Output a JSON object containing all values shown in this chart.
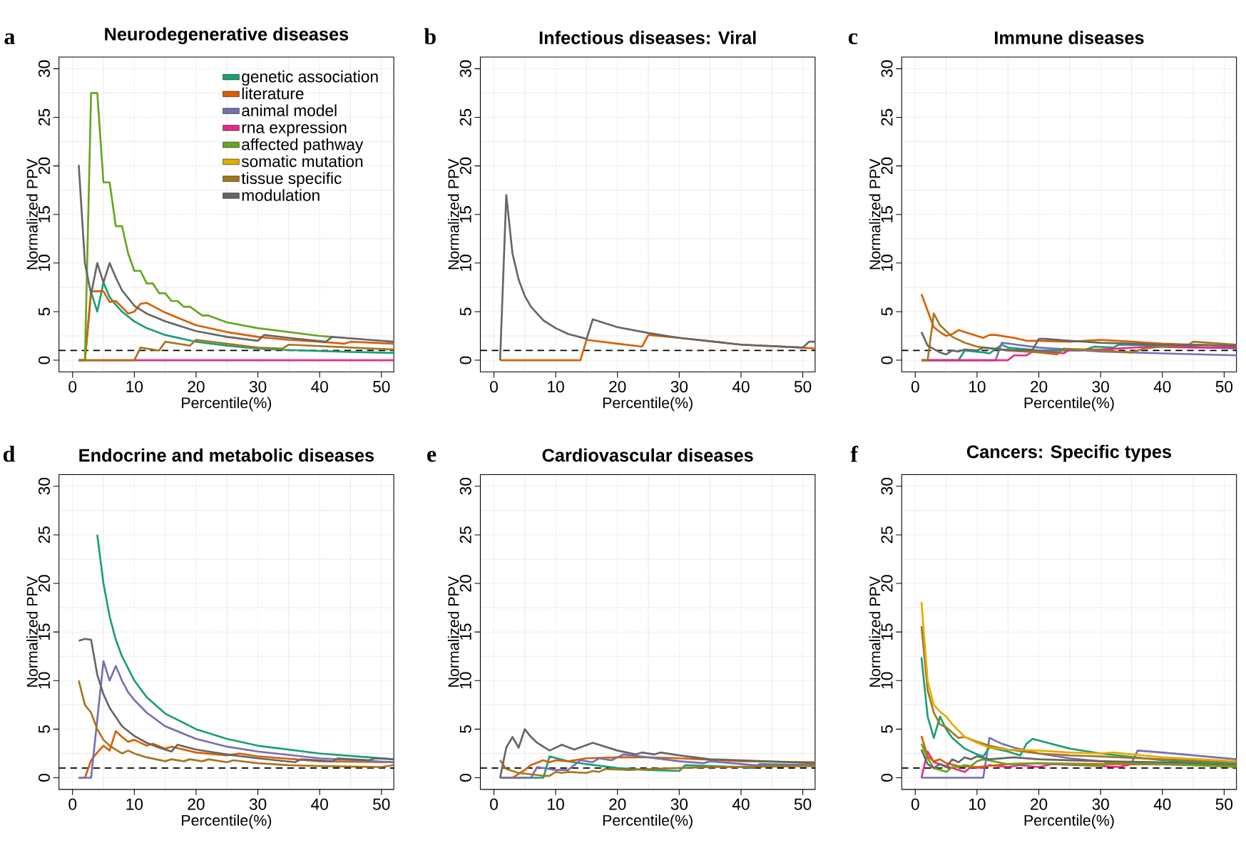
{
  "chart_data": [
    {
      "type": "line",
      "title": "Neurodegenerative diseases",
      "xlabel": "Percentile(%)",
      "ylabel": "Normalized PPV",
      "annotations": [
        "a"
      ],
      "xlim": [
        -2.2,
        52
      ],
      "ylim": [
        -1.2,
        31.2
      ],
      "xticks": [
        0,
        10,
        20,
        30,
        40,
        50
      ],
      "yticks": [
        0,
        5,
        10,
        15,
        20,
        25,
        30
      ],
      "grid": true,
      "legend": "top right",
      "ref_lines": [
        {
          "axis": "y",
          "value": 1,
          "color": "#000000",
          "line_style": "dashed"
        }
      ],
      "series": [
        {
          "name": "genetic association",
          "color": "#1b9e77",
          "x": [
            1,
            2,
            3,
            4,
            5,
            6,
            7,
            8,
            10,
            12,
            15,
            20,
            25,
            30,
            35,
            40,
            45,
            52
          ],
          "values": [
            0,
            0,
            7,
            5,
            8,
            6.5,
            5.7,
            5,
            4,
            3.3,
            2.6,
            1.9,
            1.5,
            1.2,
            1.05,
            0.95,
            0.85,
            0.75
          ]
        },
        {
          "name": "literature",
          "color": "#d95f02",
          "x": [
            1,
            2,
            3,
            5,
            6,
            7,
            9,
            10,
            11,
            12,
            15,
            20,
            25,
            30,
            35,
            40,
            44,
            45,
            52
          ],
          "values": [
            0,
            0,
            7.1,
            7.1,
            6,
            6.1,
            4.8,
            5,
            5.8,
            5.9,
            4.9,
            3.6,
            2.9,
            2.4,
            2.1,
            1.9,
            1.7,
            1.9,
            1.7
          ]
        },
        {
          "name": "animal model",
          "color": "#7570b3"
        },
        {
          "name": "rna expression",
          "color": "#e7298a",
          "x": [
            1,
            52
          ],
          "values": [
            0,
            0
          ]
        },
        {
          "name": "affected pathway",
          "color": "#66a61e",
          "x": [
            1,
            2,
            3,
            4,
            5,
            6,
            7,
            8,
            9,
            10,
            11,
            12,
            13,
            14,
            15,
            16,
            17,
            18,
            19,
            21,
            22,
            25,
            30,
            35,
            40,
            42
          ],
          "values": [
            0,
            0,
            27.5,
            27.5,
            18.3,
            18.3,
            13.8,
            13.8,
            11,
            9.2,
            9.2,
            7.9,
            7.9,
            6.9,
            6.9,
            6.1,
            6.1,
            5.5,
            5.5,
            4.6,
            4.6,
            3.9,
            3.3,
            2.9,
            2.5,
            2.4
          ]
        },
        {
          "name": "somatic mutation",
          "color": "#e6ab02"
        },
        {
          "name": "tissue specific",
          "color": "#a6761d",
          "x": [
            1,
            10,
            11,
            14,
            15,
            19,
            20,
            30,
            34,
            35,
            52
          ],
          "values": [
            0,
            0,
            1.3,
            1.0,
            1.9,
            1.5,
            2.1,
            1.3,
            1.2,
            1.6,
            1.1
          ]
        },
        {
          "name": "modulation",
          "color": "#666666",
          "x": [
            1,
            2,
            3,
            4,
            5,
            6,
            7,
            8,
            10,
            12,
            15,
            20,
            25,
            30,
            31,
            35,
            41,
            42,
            52
          ],
          "values": [
            20.1,
            10,
            6.8,
            10,
            8,
            10,
            8.5,
            7.2,
            5.6,
            4.8,
            4.0,
            3.0,
            2.4,
            2.0,
            2.6,
            2.3,
            1.9,
            2.4,
            1.9
          ]
        }
      ]
    },
    {
      "type": "line",
      "title": "Infectious diseases: Viral",
      "xlabel": "Percentile(%)",
      "ylabel": "Normalized PPV",
      "annotations": [
        "b"
      ],
      "xlim": [
        -2.2,
        52
      ],
      "ylim": [
        -1.2,
        31.2
      ],
      "xticks": [
        0,
        10,
        20,
        30,
        40,
        50
      ],
      "yticks": [
        0,
        5,
        10,
        15,
        20,
        25,
        30
      ],
      "grid": true,
      "ref_lines": [
        {
          "axis": "y",
          "value": 1,
          "color": "#000000",
          "line_style": "dashed"
        }
      ],
      "series": [
        {
          "color": "#d95f02",
          "x": [
            1,
            14,
            15,
            20,
            24,
            25,
            30,
            40,
            50,
            52
          ],
          "values": [
            0,
            0,
            2.1,
            1.7,
            1.4,
            2.6,
            2.3,
            1.6,
            1.3,
            1.2
          ]
        },
        {
          "color": "#666666",
          "x": [
            1,
            2,
            3,
            4,
            5,
            6,
            8,
            10,
            12,
            15,
            16,
            20,
            25,
            30,
            40,
            50,
            51,
            52
          ],
          "values": [
            0,
            17,
            11,
            8.3,
            6.6,
            5.5,
            4.1,
            3.3,
            2.7,
            2.2,
            4.2,
            3.4,
            2.8,
            2.3,
            1.6,
            1.3,
            1.9,
            1.9
          ]
        }
      ]
    },
    {
      "type": "line",
      "title": "Immune diseases",
      "xlabel": "Percentile(%)",
      "ylabel": "Normalized PPV",
      "annotations": [
        "c"
      ],
      "xlim": [
        -2.2,
        52
      ],
      "ylim": [
        -1.2,
        31.2
      ],
      "xticks": [
        0,
        10,
        20,
        30,
        40,
        50
      ],
      "yticks": [
        0,
        5,
        10,
        15,
        20,
        25,
        30
      ],
      "grid": true,
      "ref_lines": [
        {
          "axis": "y",
          "value": 1,
          "color": "#000000",
          "line_style": "dashed"
        }
      ],
      "series": [
        {
          "color": "#1b9e77",
          "x": [
            1,
            7,
            8,
            11,
            12,
            14,
            15,
            20,
            27,
            29,
            32,
            33,
            40,
            52
          ],
          "values": [
            0,
            0,
            1.0,
            0.8,
            0.7,
            1.6,
            1.3,
            1.0,
            1.0,
            1.4,
            1.3,
            1.6,
            1.5,
            1.2
          ]
        },
        {
          "color": "#d95f02",
          "x": [
            1,
            3,
            4,
            5,
            6,
            7,
            9,
            11,
            12,
            13,
            16,
            18,
            20,
            25,
            30,
            35,
            40,
            45,
            52
          ],
          "values": [
            6.8,
            3.4,
            2.9,
            2.5,
            2.7,
            3.1,
            2.7,
            2.3,
            2.6,
            2.6,
            2.3,
            2,
            2,
            1.9,
            2.1,
            1.9,
            1.7,
            1.6,
            1.5
          ]
        },
        {
          "color": "#7570b3",
          "x": [
            1,
            13,
            14,
            20,
            30,
            40,
            52
          ],
          "values": [
            0,
            0,
            1.8,
            1.3,
            0.9,
            0.7,
            0.5
          ]
        },
        {
          "color": "#e7298a",
          "x": [
            1,
            15,
            16,
            18,
            19,
            23,
            24,
            25,
            30,
            38,
            45,
            52
          ],
          "values": [
            0,
            0,
            0.5,
            0.5,
            0.9,
            0.8,
            0.7,
            1.1,
            1.1,
            1.4,
            1.3,
            1.3
          ]
        },
        {
          "color": "#a6761d",
          "x": [
            1,
            2,
            3,
            4,
            6,
            8,
            10,
            15,
            20,
            23,
            24,
            30,
            35,
            37,
            40,
            44,
            45,
            52
          ],
          "values": [
            0,
            0,
            4.8,
            3.6,
            2.4,
            1.8,
            1.4,
            1.0,
            0.8,
            0.6,
            1.2,
            1.0,
            0.8,
            1.2,
            1.4,
            1.5,
            1.9,
            1.6
          ]
        },
        {
          "color": "#666666",
          "x": [
            1,
            2,
            4,
            5,
            6,
            7,
            8,
            10,
            11,
            14,
            17,
            19,
            20,
            21,
            25,
            30,
            35,
            40,
            52
          ],
          "values": [
            2.9,
            1.5,
            0.8,
            0.6,
            1.0,
            0.9,
            1.1,
            1.0,
            1.3,
            1.1,
            1.0,
            1.1,
            2.2,
            2.2,
            2.0,
            1.8,
            1.7,
            1.6,
            1.5
          ]
        }
      ]
    },
    {
      "type": "line",
      "title": "Endocrine and metabolic diseases",
      "xlabel": "Percentile(%)",
      "ylabel": "Normalized PPV",
      "annotations": [
        "d"
      ],
      "xlim": [
        -2.2,
        52
      ],
      "ylim": [
        -1.2,
        31.2
      ],
      "xticks": [
        0,
        10,
        20,
        30,
        40,
        50
      ],
      "yticks": [
        0,
        5,
        10,
        15,
        20,
        25,
        30
      ],
      "grid": true,
      "ref_lines": [
        {
          "axis": "y",
          "value": 1,
          "color": "#000000",
          "line_style": "dashed"
        }
      ],
      "series": [
        {
          "color": "#1b9e77",
          "x": [
            4,
            5,
            6,
            7,
            8,
            10,
            12,
            15,
            20,
            25,
            30,
            40,
            52
          ],
          "values": [
            25,
            20,
            16.6,
            14.2,
            12.5,
            10,
            8.3,
            6.6,
            5,
            4,
            3.3,
            2.5,
            1.9
          ]
        },
        {
          "color": "#d95f02",
          "x": [
            1,
            2,
            3,
            4,
            5,
            6,
            7,
            8,
            9,
            10,
            12,
            13,
            15,
            16,
            20,
            25,
            27,
            30,
            36,
            40,
            52
          ],
          "values": [
            0,
            0,
            1.8,
            2.6,
            3.3,
            2.8,
            4.8,
            4.2,
            3.7,
            3.9,
            3.3,
            3.5,
            3.0,
            3.2,
            2.6,
            2.3,
            2.5,
            2.2,
            1.9,
            1.7,
            1.6
          ]
        },
        {
          "color": "#7570b3",
          "x": [
            1,
            3,
            5,
            6,
            7,
            8,
            9,
            10,
            12,
            15,
            20,
            25,
            30,
            40,
            52
          ],
          "values": [
            0,
            0,
            12,
            10,
            11.5,
            10,
            8.8,
            8,
            6.7,
            5.3,
            4,
            3.2,
            2.7,
            2,
            1.6
          ]
        },
        {
          "color": "#a6761d",
          "x": [
            1,
            2,
            3,
            4,
            5,
            6,
            7,
            8,
            9,
            10,
            12,
            15,
            16,
            18,
            19,
            21,
            22,
            25,
            26,
            30,
            35,
            40,
            50,
            52
          ],
          "values": [
            10,
            7.5,
            6.7,
            5,
            3.9,
            3.3,
            2.9,
            2.5,
            2.8,
            2.5,
            2.1,
            1.7,
            1.9,
            1.7,
            1.9,
            1.7,
            1.9,
            1.6,
            1.8,
            1.5,
            1.3,
            1.2,
            1.1,
            1.3
          ]
        },
        {
          "color": "#666666",
          "x": [
            1,
            2,
            3,
            4,
            5,
            6,
            8,
            10,
            12,
            14,
            16,
            17,
            20,
            25,
            30,
            36,
            37,
            42,
            43,
            48,
            49,
            52
          ],
          "values": [
            14.1,
            14.3,
            14.2,
            10.6,
            8.6,
            7.2,
            5.3,
            4.3,
            3.6,
            3.1,
            2.7,
            3.4,
            2.9,
            2.4,
            2.0,
            1.6,
            1.9,
            1.7,
            2.0,
            1.8,
            2.0,
            1.9
          ]
        }
      ]
    },
    {
      "type": "line",
      "title": "Cardiovascular diseases",
      "xlabel": "Percentile(%)",
      "ylabel": "Normalized PPV",
      "annotations": [
        "e"
      ],
      "xlim": [
        -2.2,
        52
      ],
      "ylim": [
        -1.2,
        31.2
      ],
      "xticks": [
        0,
        10,
        20,
        30,
        40,
        50
      ],
      "yticks": [
        0,
        5,
        10,
        15,
        20,
        25,
        30
      ],
      "grid": true,
      "ref_lines": [
        {
          "axis": "y",
          "value": 1,
          "color": "#000000",
          "line_style": "dashed"
        }
      ],
      "series": [
        {
          "color": "#1b9e77",
          "x": [
            1,
            8,
            9,
            12,
            15,
            20,
            25,
            30,
            31,
            40,
            42,
            43,
            52
          ],
          "values": [
            0,
            0,
            2.2,
            1.7,
            1.4,
            1.0,
            0.8,
            0.7,
            1.3,
            1.1,
            1.0,
            1.4,
            1.3
          ]
        },
        {
          "color": "#d95f02",
          "x": [
            1,
            3,
            5,
            6,
            8,
            9,
            10,
            12,
            15,
            20,
            25,
            30,
            40,
            52
          ],
          "values": [
            0,
            0,
            0.8,
            1.3,
            1.8,
            1.6,
            1.8,
            1.7,
            2.0,
            2.1,
            2.1,
            2.0,
            1.7,
            1.6
          ]
        },
        {
          "color": "#7570b3",
          "x": [
            1,
            6,
            7,
            10,
            12,
            14,
            16,
            17,
            19,
            21,
            25,
            30,
            34,
            35,
            42,
            52
          ],
          "values": [
            0,
            0,
            1.1,
            0.8,
            0.8,
            1.8,
            1.6,
            2.0,
            1.8,
            2.4,
            2.1,
            1.7,
            1.5,
            1.7,
            1.3,
            1.3
          ]
        },
        {
          "color": "#a6761d",
          "x": [
            1,
            2,
            4,
            8,
            9,
            10,
            11,
            12,
            15,
            16,
            17,
            18,
            22,
            25,
            30,
            35,
            52
          ],
          "values": [
            1.8,
            0.9,
            0.5,
            0.2,
            0.2,
            0.6,
            0.5,
            0.6,
            0.5,
            0.7,
            0.6,
            0.9,
            0.8,
            0.9,
            1.0,
            1.1,
            1.2
          ]
        },
        {
          "color": "#666666",
          "x": [
            1,
            2,
            3,
            4,
            5,
            6,
            7,
            9,
            11,
            13,
            16,
            20,
            23,
            24,
            26,
            27,
            30,
            35,
            40,
            52
          ],
          "values": [
            0,
            3.1,
            4.2,
            3.1,
            5,
            4.2,
            3.6,
            2.8,
            3.4,
            2.9,
            3.6,
            2.8,
            2.4,
            2.6,
            2.4,
            2.6,
            2.3,
            1.9,
            1.8,
            1.5
          ]
        }
      ]
    },
    {
      "type": "line",
      "title": "Cancers: Specific types",
      "xlabel": "Percentile(%)",
      "ylabel": "Normalized PPV",
      "annotations": [
        "f"
      ],
      "xlim": [
        -2.2,
        52
      ],
      "ylim": [
        -1.2,
        31.2
      ],
      "xticks": [
        0,
        10,
        20,
        30,
        40,
        50
      ],
      "yticks": [
        0,
        5,
        10,
        15,
        20,
        25,
        30
      ],
      "grid": true,
      "ref_lines": [
        {
          "axis": "y",
          "value": 1,
          "color": "#000000",
          "line_style": "dashed"
        }
      ],
      "series": [
        {
          "color": "#7570b3",
          "x": [
            1,
            11,
            12,
            14,
            16,
            20,
            25,
            30,
            35,
            36,
            40,
            52
          ],
          "values": [
            0,
            0,
            4.1,
            3.5,
            3.1,
            2.5,
            2.0,
            1.7,
            1.5,
            2.8,
            2.6,
            1.9
          ]
        },
        {
          "color": "#e7298a",
          "x": [
            1,
            2,
            3,
            5,
            8,
            9,
            11,
            12,
            15,
            17,
            20,
            22,
            30,
            33,
            35,
            52
          ],
          "values": [
            0,
            2.7,
            1.6,
            1.2,
            0.6,
            1.1,
            1.0,
            1.3,
            1.1,
            1.3,
            1.1,
            1.4,
            1.2,
            1.1,
            1.4,
            1.3
          ]
        },
        {
          "color": "#d95f02",
          "x": [
            1,
            2,
            3,
            4,
            5,
            7,
            10,
            15,
            20,
            30,
            40,
            52
          ],
          "values": [
            4.3,
            2.2,
            1.7,
            1.9,
            1.5,
            1.2,
            1.1,
            1.4,
            1.5,
            1.4,
            1.4,
            1.3
          ]
        },
        {
          "color": "#66a61e",
          "x": [
            1,
            2,
            3,
            5,
            6,
            7,
            8,
            9,
            10,
            11,
            15,
            20,
            25,
            30,
            31,
            40,
            52
          ],
          "values": [
            3.5,
            2.0,
            1.0,
            0.6,
            1.1,
            1.1,
            1.3,
            1.2,
            1.7,
            1.9,
            1.4,
            1.5,
            1.4,
            1.2,
            1.6,
            1.4,
            1.1
          ]
        },
        {
          "color": "#666666",
          "x": [
            1,
            2,
            3,
            4,
            5,
            6,
            7,
            8,
            9,
            10,
            12,
            16,
            20,
            30,
            40,
            52
          ],
          "values": [
            2.9,
            1.4,
            1.0,
            1.4,
            1.1,
            1.9,
            1.6,
            2.1,
            1.9,
            2.2,
            1.9,
            2.1,
            1.9,
            1.7,
            1.6,
            1.4
          ]
        },
        {
          "color": "#1b9e77",
          "x": [
            1,
            2,
            3,
            4,
            5,
            6,
            8,
            10,
            11,
            12,
            15,
            17,
            18,
            19,
            25,
            30,
            40,
            52
          ],
          "values": [
            12.4,
            6.3,
            4.1,
            6.3,
            5,
            4.1,
            3.0,
            2.4,
            2.2,
            3.1,
            2.7,
            2.3,
            3.5,
            4.0,
            3.0,
            2.5,
            1.8,
            1.4
          ]
        },
        {
          "color": "#a6761d",
          "x": [
            1,
            2,
            3,
            4,
            5,
            7,
            8,
            10,
            12,
            15,
            20,
            25,
            30,
            40,
            52
          ],
          "values": [
            15.6,
            9,
            6.7,
            5.5,
            5.2,
            4.1,
            4.2,
            3.7,
            3.3,
            2.9,
            2.5,
            2.3,
            2.2,
            1.9,
            1.6
          ]
        },
        {
          "color": "#e6ab02",
          "x": [
            1,
            2,
            3,
            4,
            5,
            6,
            8,
            10,
            12,
            15,
            20,
            25,
            30,
            32,
            40,
            52
          ],
          "values": [
            18.1,
            10,
            7.5,
            6.8,
            6.3,
            5.5,
            4.2,
            3.6,
            3.1,
            2.9,
            2.8,
            2.6,
            2.5,
            2.6,
            2.1,
            1.7
          ]
        }
      ]
    }
  ]
}
